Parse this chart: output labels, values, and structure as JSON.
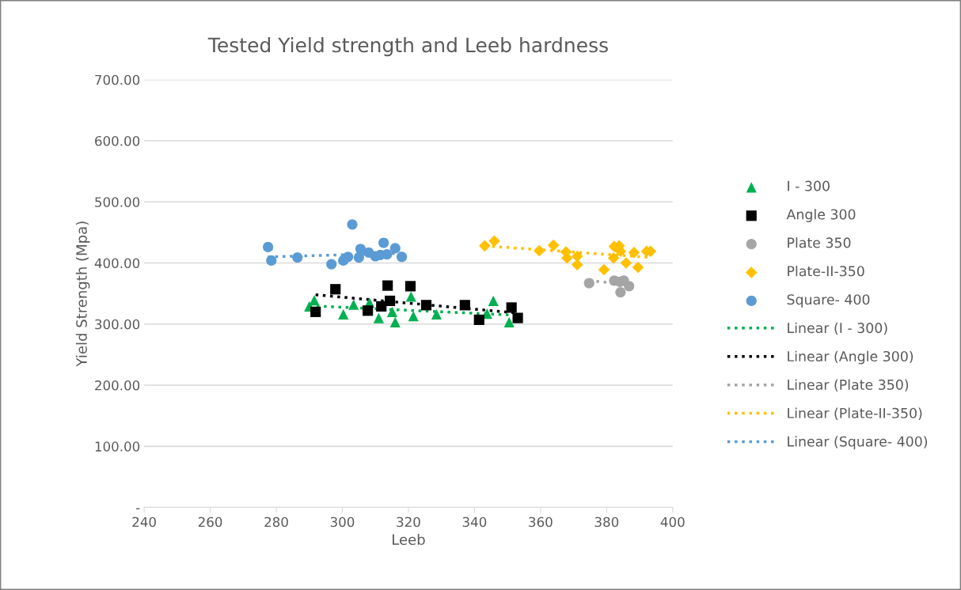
{
  "chart_data": {
    "type": "scatter",
    "title": "Tested Yield strength and Leeb hardness",
    "xlabel": "Leeb",
    "ylabel": "Yield Strength (Mpa)",
    "xlim": [
      240,
      400
    ],
    "xticks": [
      240,
      260,
      280,
      300,
      320,
      340,
      360,
      380,
      400
    ],
    "ylim": [
      0,
      700
    ],
    "yticks": [
      {
        "value": 0,
        "label": "-"
      },
      {
        "value": 100,
        "label": "100.00"
      },
      {
        "value": 200,
        "label": "200.00"
      },
      {
        "value": 300,
        "label": "300.00"
      },
      {
        "value": 400,
        "label": "400.00"
      },
      {
        "value": 500,
        "label": "500.00"
      },
      {
        "value": 600,
        "label": "600.00"
      },
      {
        "value": 700,
        "label": "700.00"
      }
    ],
    "grid": "y",
    "legend": "right",
    "series": [
      {
        "name": "I - 300",
        "marker": "triangle",
        "color": "#00b050",
        "x": [
          290,
          291.5,
          300.3,
          303.4,
          308.2,
          311,
          315.1,
          316,
          320.8,
          321.5,
          328.5,
          343.8,
          345.7,
          350.5
        ],
        "values": [
          329,
          339,
          316,
          332,
          335,
          310,
          320,
          303,
          345,
          313,
          316,
          317,
          338,
          303
        ]
      },
      {
        "name": "Angle 300",
        "marker": "square",
        "color": "#000000",
        "x": [
          291.9,
          297.9,
          307.7,
          311.8,
          313.7,
          314.4,
          320.6,
          325.4,
          337.1,
          341.4,
          351.2,
          353.1
        ],
        "values": [
          320,
          357,
          322,
          329,
          363,
          338,
          362,
          331,
          331,
          307,
          327,
          310
        ]
      },
      {
        "name": "Plate 350",
        "marker": "circle",
        "color": "#a5a5a5",
        "x": [
          374.7,
          382.3,
          384,
          384.2,
          385.2,
          386.8
        ],
        "values": [
          367,
          371,
          369,
          352,
          371,
          362
        ]
      },
      {
        "name": "Plate-II-350",
        "marker": "diamond",
        "color": "#ffc000",
        "x": [
          343.1,
          346,
          359.6,
          363.9,
          367.7,
          368,
          371.1,
          371.1,
          379.2,
          382.1,
          382.3,
          383.8,
          384.2,
          385.9,
          388.3,
          389.5,
          392.1,
          393.3
        ],
        "values": [
          428,
          436,
          420,
          429,
          418,
          408,
          411,
          397,
          389,
          408,
          427,
          428,
          419,
          400,
          417,
          393,
          419,
          419
        ]
      },
      {
        "name": "Square- 400",
        "marker": "circle",
        "color": "#5b9bd5",
        "x": [
          277.5,
          278.5,
          286.4,
          296.7,
          300.3,
          301.7,
          303,
          305,
          305.5,
          308,
          310,
          311.5,
          312.5,
          313.5,
          316,
          318
        ],
        "values": [
          426,
          404,
          409,
          398,
          404,
          410,
          463,
          409,
          423,
          417,
          411,
          413,
          433,
          414,
          424,
          410
        ]
      },
      {
        "name": "Linear (I - 300)",
        "type": "line",
        "line_style": "dotted",
        "marker": "none",
        "color": "#00b050",
        "x": [
          290,
          350.5
        ],
        "values": [
          330,
          315
        ]
      },
      {
        "name": "Linear (Angle 300)",
        "type": "line",
        "line_style": "dotted",
        "marker": "none",
        "color": "#000000",
        "x": [
          291.9,
          353.1
        ],
        "values": [
          348,
          318
        ]
      },
      {
        "name": "Linear (Plate 350)",
        "type": "line",
        "line_style": "dotted",
        "marker": "none",
        "color": "#a5a5a5",
        "x": [
          374.7,
          386.8
        ],
        "values": [
          371,
          365
        ]
      },
      {
        "name": "Linear (Plate-II-350)",
        "type": "line",
        "line_style": "dotted",
        "marker": "none",
        "color": "#ffc000",
        "x": [
          343.1,
          393.3
        ],
        "values": [
          428,
          409
        ]
      },
      {
        "name": "Linear (Square- 400)",
        "type": "line",
        "line_style": "dotted",
        "marker": "none",
        "color": "#5b9bd5",
        "x": [
          277.5,
          318
        ],
        "values": [
          410,
          416
        ]
      }
    ]
  }
}
